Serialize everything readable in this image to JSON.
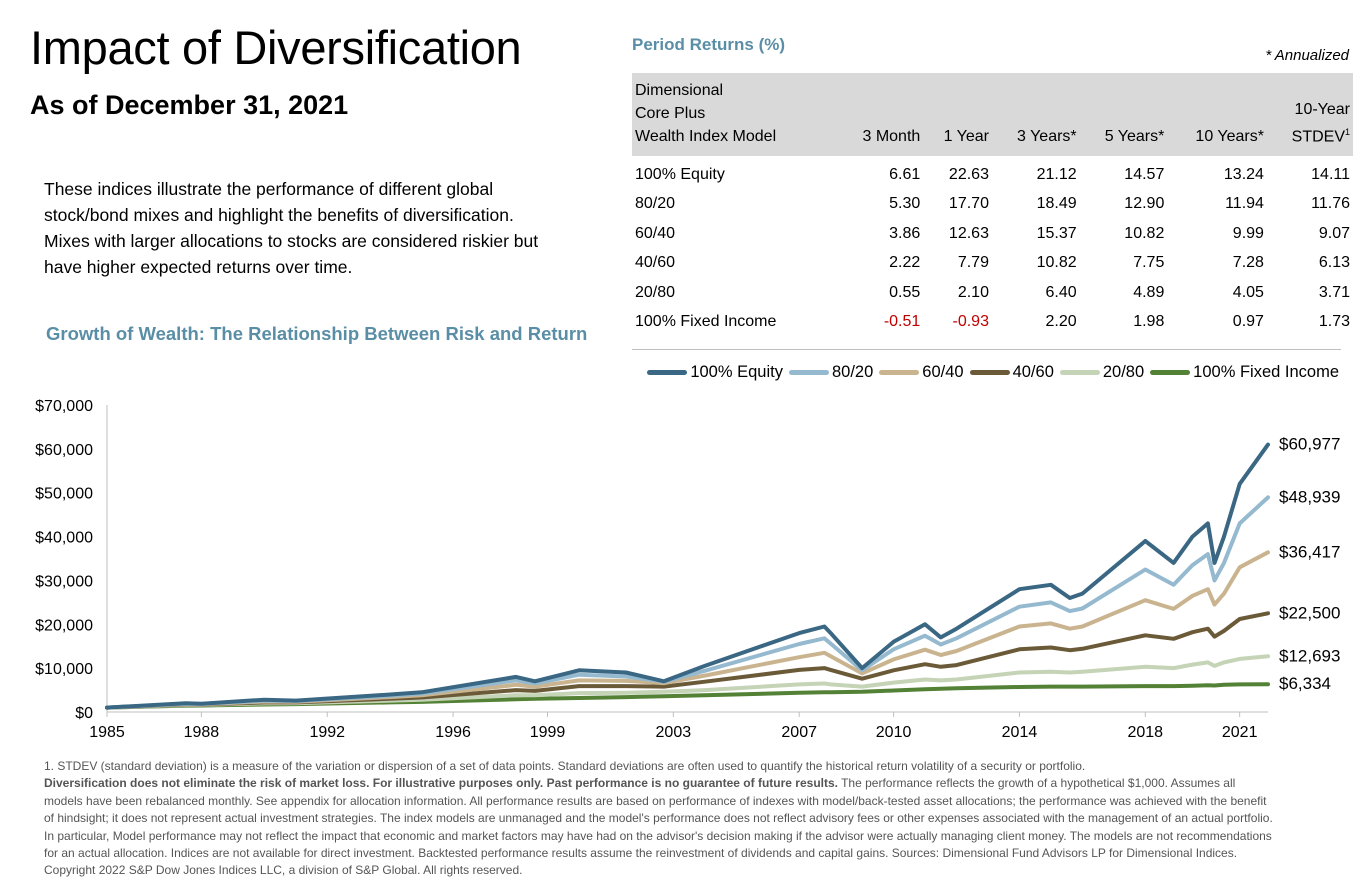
{
  "header": {
    "title": "Impact of Diversification",
    "subtitle": "As of December 31, 2021"
  },
  "description": "These indices illustrate the performance of different global stock/bond mixes and highlight the benefits of diversification. Mixes with larger allocations to stocks are considered riskier but have higher expected returns over time.",
  "growth_title": "Growth of Wealth: The Relationship Between Risk and Return",
  "period_returns": {
    "title": "Period Returns (%)",
    "annualized_note": "* Annualized",
    "columns": {
      "model": [
        "Dimensional",
        "Core Plus",
        "Wealth Index Model"
      ],
      "m3": "3 Month",
      "y1": "1 Year",
      "y3": "3 Years*",
      "y5": "5 Years*",
      "y10": "10 Years*",
      "stdev_top": "10-Year",
      "stdev_bottom": "STDEV",
      "stdev_sup": "1"
    },
    "rows": [
      {
        "name": "100% Equity",
        "values": [
          "6.61",
          "22.63",
          "21.12",
          "14.57",
          "13.24",
          "14.11"
        ],
        "negative": [
          false,
          false,
          false,
          false,
          false,
          false
        ]
      },
      {
        "name": "80/20",
        "values": [
          "5.30",
          "17.70",
          "18.49",
          "12.90",
          "11.94",
          "11.76"
        ],
        "negative": [
          false,
          false,
          false,
          false,
          false,
          false
        ]
      },
      {
        "name": "60/40",
        "values": [
          "3.86",
          "12.63",
          "15.37",
          "10.82",
          "9.99",
          "9.07"
        ],
        "negative": [
          false,
          false,
          false,
          false,
          false,
          false
        ]
      },
      {
        "name": "40/60",
        "values": [
          "2.22",
          "7.79",
          "10.82",
          "7.75",
          "7.28",
          "6.13"
        ],
        "negative": [
          false,
          false,
          false,
          false,
          false,
          false
        ]
      },
      {
        "name": "20/80",
        "values": [
          "0.55",
          "2.10",
          "6.40",
          "4.89",
          "4.05",
          "3.71"
        ],
        "negative": [
          false,
          false,
          false,
          false,
          false,
          false
        ]
      },
      {
        "name": "100% Fixed Income",
        "values": [
          "-0.51",
          "-0.93",
          "2.20",
          "1.98",
          "0.97",
          "1.73"
        ],
        "negative": [
          true,
          true,
          false,
          false,
          false,
          false
        ]
      }
    ]
  },
  "chart_data": {
    "type": "line",
    "title": "",
    "xlabel": "",
    "ylabel": "",
    "xlim": [
      1985,
      2021.9
    ],
    "ylim": [
      0,
      70000
    ],
    "x_ticks": [
      "1985",
      "1988",
      "1992",
      "1996",
      "1999",
      "2003",
      "2007",
      "2010",
      "2014",
      "2018",
      "2021"
    ],
    "y_ticks": [
      "$0",
      "$10,000",
      "$20,000",
      "$30,000",
      "$40,000",
      "$50,000",
      "$60,000",
      "$70,000"
    ],
    "grid": false,
    "legend_position": "top-right",
    "x": [
      1985.0,
      1987.5,
      1988.0,
      1990.0,
      1991.0,
      1994.0,
      1995.0,
      1998.0,
      1998.6,
      2000.0,
      2001.5,
      2002.7,
      2004.0,
      2007.0,
      2007.8,
      2008.0,
      2009.0,
      2010.0,
      2011.0,
      2011.5,
      2012.0,
      2014.0,
      2015.0,
      2015.6,
      2016.0,
      2018.0,
      2018.9,
      2019.5,
      2019.99,
      2020.2,
      2020.5,
      2021.0,
      2021.9
    ],
    "series": [
      {
        "name": "100% Equity",
        "color": "#3a6783",
        "end_label": "$60,977",
        "values": [
          1000,
          2000,
          1900,
          2800,
          2600,
          4000,
          4500,
          8000,
          7000,
          9500,
          9000,
          7000,
          10500,
          18000,
          19500,
          18000,
          10000,
          16000,
          20000,
          17000,
          19000,
          28000,
          29000,
          26000,
          27000,
          39000,
          34000,
          40000,
          43000,
          34000,
          40000,
          52000,
          60977
        ]
      },
      {
        "name": "80/20",
        "color": "#95b9cf",
        "end_label": "$48,939",
        "values": [
          1000,
          1900,
          1850,
          2600,
          2500,
          3700,
          4200,
          7200,
          6500,
          8500,
          8100,
          6900,
          9400,
          15500,
          16800,
          15600,
          9500,
          14300,
          17400,
          15400,
          16800,
          24000,
          25000,
          23000,
          23600,
          32500,
          29000,
          33500,
          36000,
          30000,
          34000,
          43000,
          48939
        ]
      },
      {
        "name": "60/40",
        "color": "#c9b48f",
        "end_label": "$36,417",
        "values": [
          1000,
          1800,
          1780,
          2400,
          2350,
          3400,
          3800,
          6200,
          5800,
          7200,
          7100,
          6600,
          8300,
          12500,
          13500,
          12700,
          8800,
          12000,
          14200,
          13000,
          13900,
          19500,
          20200,
          19000,
          19500,
          25500,
          23500,
          26500,
          28000,
          24500,
          27000,
          33000,
          36417
        ]
      },
      {
        "name": "40/60",
        "color": "#6b5a38",
        "end_label": "$22,500",
        "values": [
          1000,
          1700,
          1700,
          2200,
          2200,
          3000,
          3300,
          5000,
          4800,
          5900,
          5900,
          5800,
          6900,
          9600,
          10000,
          9600,
          7600,
          9500,
          10900,
          10300,
          10700,
          14300,
          14700,
          14100,
          14400,
          17500,
          16700,
          18200,
          19000,
          17200,
          18500,
          21200,
          22500
        ]
      },
      {
        "name": "20/80",
        "color": "#c5d3b6",
        "end_label": "$12,693",
        "values": [
          1000,
          1600,
          1620,
          1950,
          2000,
          2600,
          2800,
          3800,
          3800,
          4300,
          4400,
          4600,
          5000,
          6300,
          6500,
          6300,
          5800,
          6700,
          7400,
          7200,
          7400,
          9000,
          9200,
          9000,
          9200,
          10300,
          10000,
          10800,
          11300,
          10500,
          11300,
          12100,
          12693
        ]
      },
      {
        "name": "100% Fixed Income",
        "color": "#538135",
        "end_label": "$6,334",
        "values": [
          1000,
          1450,
          1480,
          1700,
          1800,
          2200,
          2300,
          2900,
          3000,
          3200,
          3400,
          3600,
          3800,
          4400,
          4500,
          4500,
          4600,
          4900,
          5200,
          5300,
          5400,
          5700,
          5800,
          5800,
          5800,
          5900,
          5900,
          6000,
          6100,
          6050,
          6200,
          6300,
          6334
        ]
      }
    ]
  },
  "footnotes": {
    "note1": "1. STDEV (standard deviation) is a measure of the variation or dispersion of a set of data points. Standard deviations are often used to quantify the historical return volatility of a security or portfolio.",
    "bold": "Diversification does not eliminate the risk of market loss. For illustrative purposes only. Past performance is no guarantee of future results.",
    "rest": " The performance reflects the growth of a hypothetical $1,000. Assumes all models have been rebalanced monthly. See appendix for allocation information. All performance results are based on performance of indexes with model/back-tested asset allocations; the performance was achieved with the benefit of hindsight; it does not represent actual investment strategies. The index models are unmanaged and the model's performance does not reflect advisory fees or other expenses associated with the management of an actual portfolio. In particular, Model performance may not reflect the impact that economic and market factors may have had on the advisor's decision making if the advisor were actually managing client money. The models are not recommendations for an actual allocation. Indices are not available for direct investment. Backtested performance results assume the reinvestment of dividends and capital gains. Sources: Dimensional Fund Advisors LP for Dimensional Indices. Copyright 2022 S&P Dow Jones Indices LLC, a division of S&P Global. All rights reserved."
  }
}
